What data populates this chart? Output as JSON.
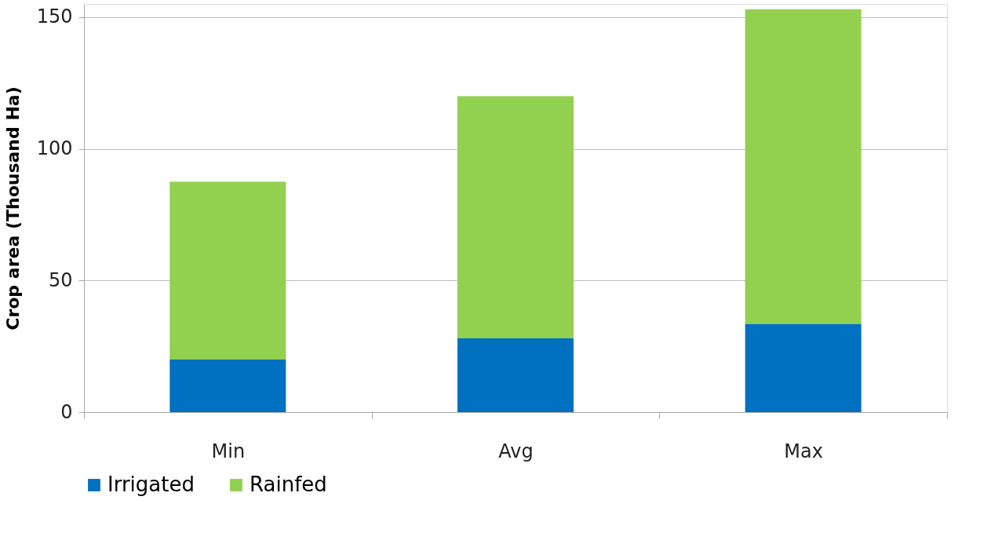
{
  "chart_data": {
    "type": "bar",
    "stacked": true,
    "ylabel": "Crop area (Thousand Ha)",
    "categories": [
      "Min",
      "Avg",
      "Max"
    ],
    "series": [
      {
        "name": "Irrigated",
        "color": "#0070c0",
        "values": [
          20,
          28,
          33.5
        ]
      },
      {
        "name": "Rainfed",
        "color": "#92d050",
        "values": [
          67.5,
          92,
          119.5
        ]
      }
    ],
    "ylim": [
      0,
      155
    ],
    "yticks": [
      0,
      50,
      100,
      150
    ],
    "grid": "y",
    "legend": "bottom"
  }
}
